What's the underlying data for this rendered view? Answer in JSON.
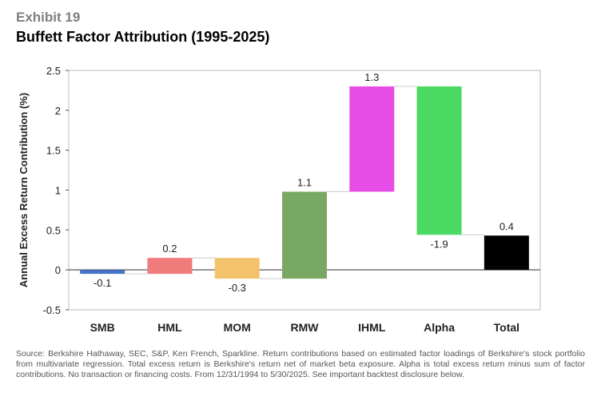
{
  "header": {
    "exhibit": "Exhibit 19",
    "title": "Buffett Factor Attribution (1995-2025)"
  },
  "chart_data": {
    "type": "waterfall",
    "title": "Buffett Factor Attribution (1995-2025)",
    "xlabel": "",
    "ylabel": "Annual Excess Return Contribution (%)",
    "ylim": [
      -0.5,
      2.5
    ],
    "yticks": [
      -0.5,
      0,
      0.5,
      1,
      1.5,
      2,
      2.5
    ],
    "ytick_labels": [
      "-0.5",
      "0",
      "0.5",
      "1",
      "1.5",
      "2",
      "2.5"
    ],
    "grid": false,
    "categories": [
      "SMB",
      "HML",
      "MOM",
      "RMW",
      "IHML",
      "Alpha",
      "Total"
    ],
    "values": [
      -0.05,
      0.2,
      -0.26,
      1.09,
      1.32,
      -1.86,
      0.43
    ],
    "data_labels": [
      "-0.1",
      "0.2",
      "-0.3",
      "1.1",
      "1.3",
      "-1.9",
      "0.4"
    ],
    "colors": [
      "#4472c4",
      "#f07b7b",
      "#f2c36b",
      "#79a865",
      "#e64de6",
      "#4cd964",
      "#000000"
    ],
    "is_total": [
      false,
      false,
      false,
      false,
      false,
      false,
      true
    ]
  },
  "footnote": "Source: Berkshire Hathaway, SEC, S&P, Ken French, Sparkline. Return contributions based on estimated factor loadings of Berkshire's stock portfolio from multivariate regression. Total excess return is Berkshire's return net of market beta exposure. Alpha is total excess return minus sum of factor contributions. No transaction or financing costs. From 12/31/1994 to 5/30/2025. See important backtest disclosure below."
}
